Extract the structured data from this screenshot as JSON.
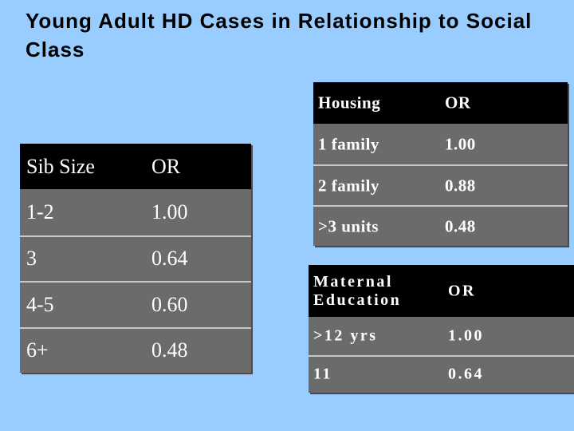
{
  "title": "Young Adult HD Cases in Relationship to Social Class",
  "tables": [
    {
      "header": [
        "Sib Size",
        "OR"
      ],
      "rows": [
        [
          "1-2",
          "1.00"
        ],
        [
          "3",
          "0.64"
        ],
        [
          "4-5",
          "0.60"
        ],
        [
          "6+",
          "0.48"
        ]
      ]
    },
    {
      "header": [
        "Housing",
        "OR"
      ],
      "rows": [
        [
          "1 family",
          "1.00"
        ],
        [
          "2 family",
          "0.88"
        ],
        [
          ">3 units",
          "0.48"
        ]
      ]
    },
    {
      "header": [
        "Maternal Education",
        "OR"
      ],
      "rows": [
        [
          ">12 yrs",
          "1.00"
        ],
        [
          "11",
          "0.64"
        ]
      ]
    }
  ]
}
